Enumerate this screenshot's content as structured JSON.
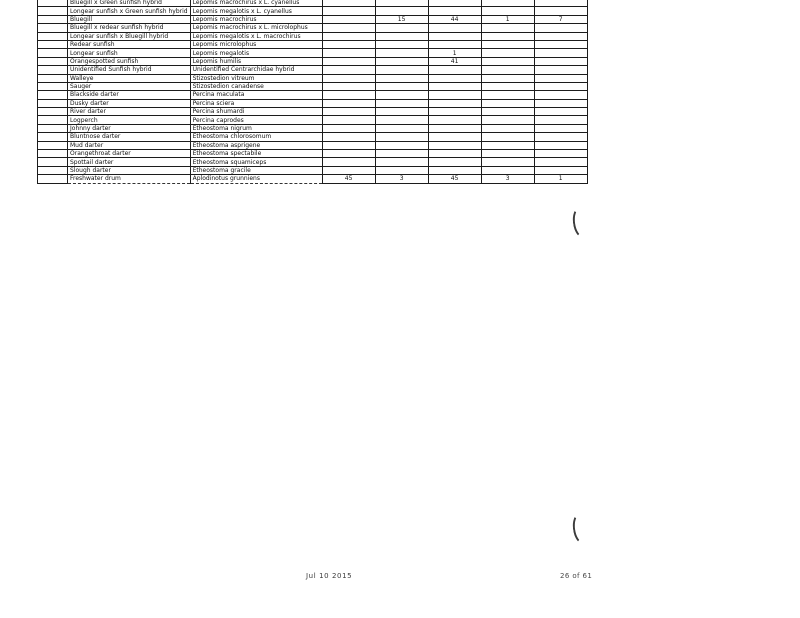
{
  "document": {
    "footer": {
      "date_stamp": "Jul 10 2015",
      "page_number": "26 of 61"
    }
  },
  "table": {
    "rows": [
      {
        "common_name": "Bluegill x Green sunfish hybrid",
        "scientific_name": "Lepomis macrochirus x L. cyanellus",
        "counts": [
          "",
          "",
          "",
          "",
          ""
        ]
      },
      {
        "common_name": "Longear sunfish x Green sunfish hybrid",
        "scientific_name": "Lepomis megalotis x L. cyanellus",
        "counts": [
          "",
          "",
          "",
          "",
          ""
        ]
      },
      {
        "common_name": "Bluegill",
        "scientific_name": "Lepomis macrochirus",
        "counts": [
          "",
          "15",
          "44",
          "1",
          "7"
        ]
      },
      {
        "common_name": "Bluegill x redear sunfish hybrid",
        "scientific_name": "Lepomis macrochirus x L. microlophus",
        "counts": [
          "",
          "",
          "",
          "",
          ""
        ]
      },
      {
        "common_name": "Longear sunfish x Bluegill hybrid",
        "scientific_name": "Lepomis megalotis x L. macrochirus",
        "counts": [
          "",
          "",
          "",
          "",
          ""
        ]
      },
      {
        "common_name": "Redear sunfish",
        "scientific_name": "Lepomis microlophus",
        "counts": [
          "",
          "",
          "",
          "",
          ""
        ]
      },
      {
        "common_name": "Longear sunfish",
        "scientific_name": "Lepomis megalotis",
        "counts": [
          "",
          "",
          "1",
          "",
          ""
        ]
      },
      {
        "common_name": "Orangespotted sunfish",
        "scientific_name": "Lepomis humilis",
        "counts": [
          "",
          "",
          "41",
          "",
          ""
        ]
      },
      {
        "common_name": "Unidentified Sunfish hybrid",
        "scientific_name": "Unidentified Centrarchidae hybrid",
        "counts": [
          "",
          "",
          "",
          "",
          ""
        ]
      },
      {
        "common_name": "Walleye",
        "scientific_name": "Stizostedion vitreum",
        "counts": [
          "",
          "",
          "",
          "",
          ""
        ]
      },
      {
        "common_name": "Sauger",
        "scientific_name": "Stizostedion canadense",
        "counts": [
          "",
          "",
          "",
          "",
          ""
        ]
      },
      {
        "common_name": "Blackside darter",
        "scientific_name": "Percina maculata",
        "counts": [
          "",
          "",
          "",
          "",
          ""
        ]
      },
      {
        "common_name": "Dusky darter",
        "scientific_name": "Percina sciera",
        "counts": [
          "",
          "",
          "",
          "",
          ""
        ]
      },
      {
        "common_name": "River darter",
        "scientific_name": "Percina shumardi",
        "counts": [
          "",
          "",
          "",
          "",
          ""
        ]
      },
      {
        "common_name": "Logperch",
        "scientific_name": "Percina caprodes",
        "counts": [
          "",
          "",
          "",
          "",
          ""
        ]
      },
      {
        "common_name": "Johnny darter",
        "scientific_name": "Etheostoma nigrum",
        "counts": [
          "",
          "",
          "",
          "",
          ""
        ]
      },
      {
        "common_name": "Bluntnose darter",
        "scientific_name": "Etheostoma chlorosomum",
        "counts": [
          "",
          "",
          "",
          "",
          ""
        ]
      },
      {
        "common_name": "Mud darter",
        "scientific_name": "Etheostoma asprigene",
        "counts": [
          "",
          "",
          "",
          "",
          ""
        ]
      },
      {
        "common_name": "Orangethroat darter",
        "scientific_name": "Etheostoma spectabile",
        "counts": [
          "",
          "",
          "",
          "",
          ""
        ]
      },
      {
        "common_name": "Spottail darter",
        "scientific_name": "Etheostoma squamiceps",
        "counts": [
          "",
          "",
          "",
          "",
          ""
        ]
      },
      {
        "common_name": "Slough darter",
        "scientific_name": "Etheostoma gracile",
        "counts": [
          "",
          "",
          "",
          "",
          ""
        ]
      },
      {
        "common_name": "Freshwater drum",
        "scientific_name": "Aplodinotus grunniens",
        "counts": [
          "45",
          "3",
          "45",
          "3",
          "1"
        ]
      }
    ]
  }
}
